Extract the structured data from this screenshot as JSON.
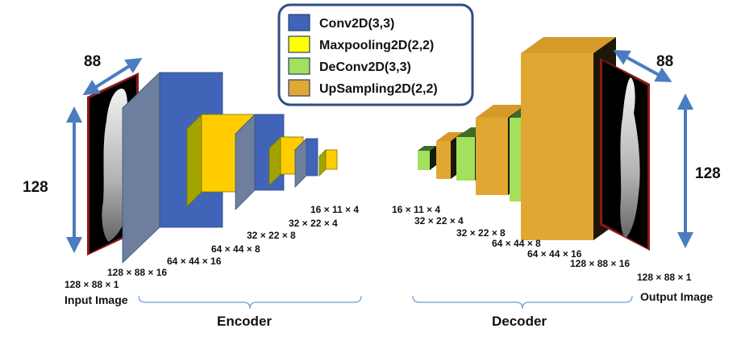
{
  "legend": {
    "items": [
      {
        "label": "Conv2D(3,3)",
        "color": "#3f64b8"
      },
      {
        "label": "Maxpooling2D(2,2)",
        "color": "#ffff00"
      },
      {
        "label": "DeConv2D(3,3)",
        "color": "#a3e05c"
      },
      {
        "label": "UpSampling2D(2,2)",
        "color": "#e0a732"
      }
    ],
    "border_color": "#2f4f7f"
  },
  "input": {
    "width_label": "88",
    "height_label": "128",
    "shape_label": "128 × 88 × 1",
    "caption": "Input Image"
  },
  "output": {
    "width_label": "88",
    "height_label": "128",
    "shape_label": "128 × 88 × 1",
    "caption": "Output Image"
  },
  "encoder": {
    "title": "Encoder",
    "dims": [
      "128 × 88 × 16",
      "64 × 44 × 16",
      "64 × 44 × 8",
      "32 × 22 × 8",
      "32 × 22 × 4",
      "16 × 11 × 4"
    ]
  },
  "decoder": {
    "title": "Decoder",
    "dims": [
      "16 × 11 × 4",
      "32 × 22 × 4",
      "32 × 22 × 8",
      "64 × 44 × 8",
      "64 × 44 × 16",
      "128 × 88 × 16"
    ]
  },
  "colors": {
    "conv_front": "#3f64b8",
    "conv_top": "#7a8fc8",
    "conv_side": "#6e7f9e",
    "pool_front": "#ffcc00",
    "pool_top": "#d6d600",
    "pool_side": "#a3a300",
    "deconv_front": "#a3e05c",
    "deconv_top": "#3d6b2a",
    "deconv_side": "#0f1f0a",
    "up_front": "#e0a732",
    "up_top": "#d69a28",
    "up_side": "#1e1608",
    "arrow": "#4a7cc0",
    "bracket": "#6a9bd4",
    "image_border": "#c0302b"
  }
}
